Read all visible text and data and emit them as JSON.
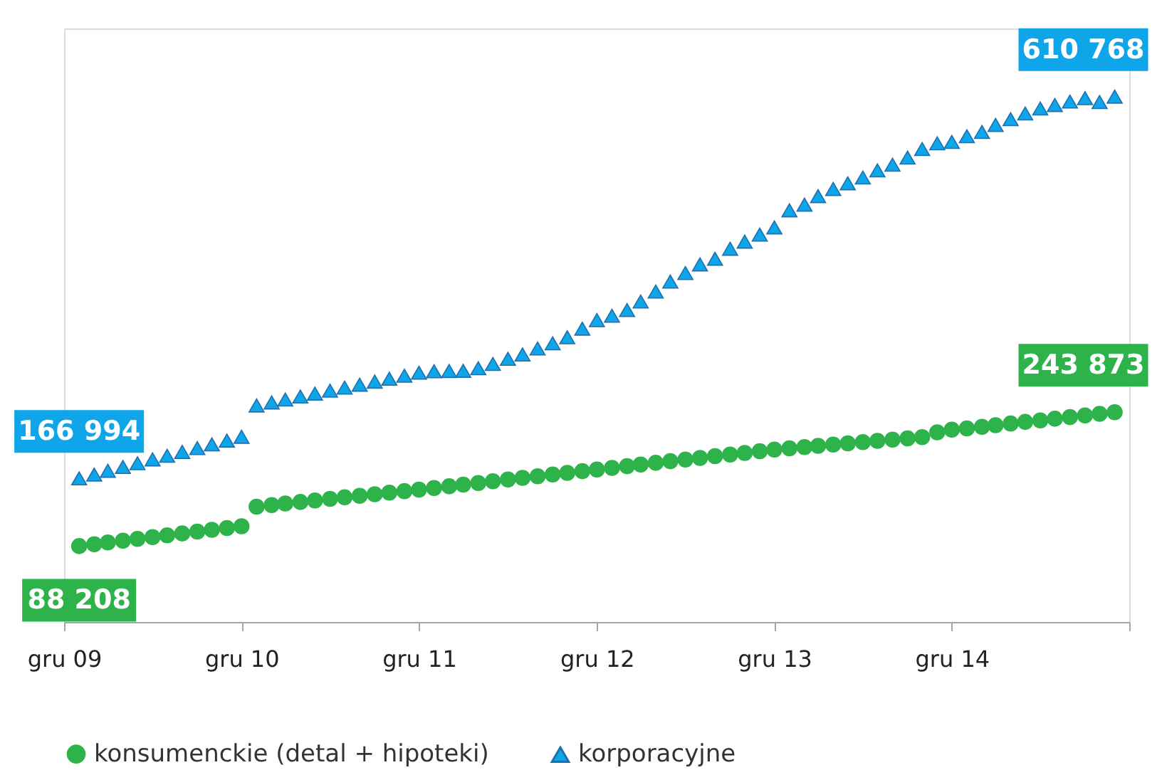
{
  "chart_data": {
    "type": "scatter",
    "x": [
      "2010-01-01",
      "2010-02-01",
      "2010-03-01",
      "2010-04-01",
      "2010-05-01",
      "2010-06-01",
      "2010-07-01",
      "2010-08-01",
      "2010-09-01",
      "2010-10-01",
      "2010-11-01",
      "2010-12-01",
      "2011-01-01",
      "2011-02-01",
      "2011-03-01",
      "2011-04-01",
      "2011-05-01",
      "2011-06-01",
      "2011-07-01",
      "2011-08-01",
      "2011-09-01",
      "2011-10-01",
      "2011-11-01",
      "2011-12-01",
      "2012-01-01",
      "2012-02-01",
      "2012-03-01",
      "2012-04-01",
      "2012-05-01",
      "2012-06-01",
      "2012-07-01",
      "2012-08-01",
      "2012-09-01",
      "2012-10-01",
      "2012-11-01",
      "2012-12-01",
      "2013-01-01",
      "2013-02-01",
      "2013-03-01",
      "2013-04-01",
      "2013-05-01",
      "2013-06-01",
      "2013-07-01",
      "2013-08-01",
      "2013-09-01",
      "2013-10-01",
      "2013-11-01",
      "2013-12-01",
      "2014-01-01",
      "2014-02-01",
      "2014-03-01",
      "2014-04-01",
      "2014-05-01",
      "2014-06-01",
      "2014-07-01",
      "2014-08-01",
      "2014-09-01",
      "2014-10-01",
      "2014-11-01",
      "2014-12-01",
      "2015-01-01",
      "2015-02-01",
      "2015-03-01",
      "2015-04-01",
      "2015-05-01",
      "2015-06-01",
      "2015-07-01",
      "2015-08-01",
      "2015-09-01",
      "2015-10-01",
      "2015-11-01"
    ],
    "series": [
      {
        "name": "konsumenckie (detal + hipoteki)",
        "color": "#2db34a",
        "marker": "circle",
        "values": [
          88208,
          90300,
          92400,
          94500,
          96600,
          98700,
          100800,
          102900,
          105000,
          107100,
          109200,
          111300,
          134100,
          135900,
          137700,
          139500,
          141300,
          143100,
          144900,
          146700,
          148500,
          150300,
          152100,
          153900,
          155800,
          157700,
          159700,
          161600,
          163600,
          165600,
          167500,
          169400,
          171400,
          173300,
          175300,
          177200,
          179100,
          181100,
          183000,
          185000,
          186900,
          188800,
          190700,
          192700,
          194600,
          196500,
          198500,
          200400,
          201800,
          203300,
          204700,
          206200,
          207600,
          209100,
          210500,
          212000,
          213400,
          214900,
          220500,
          223600,
          225000,
          226900,
          228800,
          230700,
          232600,
          234400,
          236300,
          238200,
          240100,
          242000,
          243873
        ],
        "value_labels": [
          "88 208",
          null,
          null,
          null,
          null,
          null,
          null,
          null,
          null,
          null,
          null,
          null,
          null,
          null,
          null,
          null,
          null,
          null,
          null,
          null,
          null,
          null,
          null,
          null,
          null,
          null,
          null,
          null,
          null,
          null,
          null,
          null,
          null,
          null,
          null,
          null,
          null,
          null,
          null,
          null,
          null,
          null,
          null,
          null,
          null,
          null,
          null,
          null,
          null,
          null,
          null,
          null,
          null,
          null,
          null,
          null,
          null,
          null,
          null,
          null,
          null,
          null,
          null,
          null,
          null,
          null,
          null,
          null,
          null,
          null,
          "243 873"
        ]
      },
      {
        "name": "korporacyjne",
        "color": "#0ea5e9",
        "marker": "triangle",
        "values": [
          166994,
          171400,
          175800,
          180200,
          184600,
          189000,
          193300,
          197700,
          202100,
          206500,
          210900,
          215300,
          251700,
          255200,
          258600,
          262100,
          265500,
          269000,
          272500,
          275900,
          279400,
          282800,
          286300,
          289800,
          291500,
          291800,
          292000,
          295000,
          300000,
          306000,
          311000,
          318000,
          324000,
          331000,
          341000,
          351000,
          356000,
          362600,
          372600,
          384200,
          395800,
          405700,
          415700,
          422300,
          433900,
          442200,
          450400,
          458700,
          478600,
          485200,
          495100,
          503400,
          510000,
          516700,
          525000,
          531600,
          539900,
          549800,
          556400,
          558100,
          564700,
          569700,
          577900,
          584600,
          591200,
          597000,
          601000,
          605000,
          609000,
          604500,
          610768
        ],
        "value_labels": [
          "166 994",
          null,
          null,
          null,
          null,
          null,
          null,
          null,
          null,
          null,
          null,
          null,
          null,
          null,
          null,
          null,
          null,
          null,
          null,
          null,
          null,
          null,
          null,
          null,
          null,
          null,
          null,
          null,
          null,
          null,
          null,
          null,
          null,
          null,
          null,
          null,
          null,
          null,
          null,
          null,
          null,
          null,
          null,
          null,
          null,
          null,
          null,
          null,
          null,
          null,
          null,
          null,
          null,
          null,
          null,
          null,
          null,
          null,
          null,
          null,
          null,
          null,
          null,
          null,
          null,
          null,
          null,
          null,
          null,
          null,
          "610 768"
        ]
      }
    ],
    "xlim": [
      "2009-12-01",
      "2015-12-01"
    ],
    "xticks": [
      {
        "value": "2009-12-01",
        "label": "gru 09"
      },
      {
        "value": "2010-12-01",
        "label": "gru 10"
      },
      {
        "value": "2011-12-01",
        "label": "gru 11"
      },
      {
        "value": "2012-12-01",
        "label": "gru 12"
      },
      {
        "value": "2013-12-01",
        "label": "gru 13"
      },
      {
        "value": "2014-12-01",
        "label": "gru 14"
      },
      {
        "value": "2015-12-01",
        "label": null
      }
    ],
    "ylim": [
      0,
      690000
    ],
    "tick_labels": "x",
    "grid": false,
    "legend": "bottom"
  }
}
